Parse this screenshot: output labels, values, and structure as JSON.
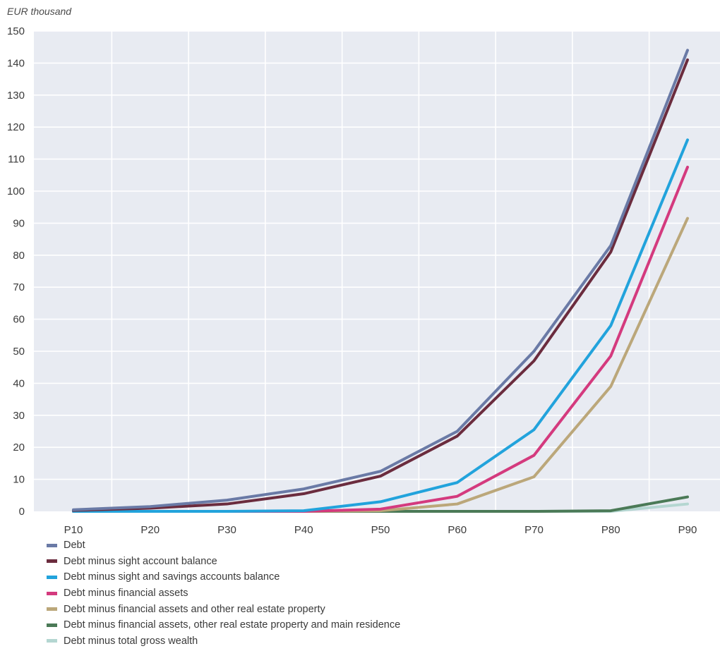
{
  "chart_data": {
    "type": "line",
    "unit_label": "EUR thousand",
    "xlabel": "",
    "ylabel": "",
    "categories": [
      "P10",
      "P20",
      "P30",
      "P40",
      "P50",
      "P60",
      "P70",
      "P80",
      "P90"
    ],
    "ylim": [
      0,
      150
    ],
    "yticks": [
      0,
      10,
      20,
      30,
      40,
      50,
      60,
      70,
      80,
      90,
      100,
      110,
      120,
      130,
      140,
      150
    ],
    "grid": true,
    "legend_position": "bottom",
    "background": "#e8ebf2",
    "series": [
      {
        "name": "Debt",
        "color": "#6a7aa6",
        "values": [
          0.5,
          1.5,
          3.5,
          7,
          12.5,
          25,
          50,
          83,
          144
        ]
      },
      {
        "name": "Debt minus sight account balance",
        "color": "#6b2c3e",
        "values": [
          0.3,
          1,
          2.3,
          5.5,
          11,
          23.5,
          47,
          81,
          141
        ]
      },
      {
        "name": "Debt minus sight and savings accounts balance",
        "color": "#22a3dc",
        "values": [
          0,
          0,
          0,
          0.2,
          3,
          9,
          25.5,
          58,
          116
        ]
      },
      {
        "name": "Debt minus financial assets",
        "color": "#d43a7e",
        "values": [
          0,
          0,
          0,
          0,
          0.7,
          4.7,
          17.5,
          48.5,
          107.5
        ]
      },
      {
        "name": "Debt minus financial assets and other real estate property",
        "color": "#bba77a",
        "values": [
          0,
          0,
          0,
          0,
          0.2,
          2.3,
          10.8,
          39,
          91.5
        ]
      },
      {
        "name": "Debt minus financial assets, other real estate property and main residence",
        "color": "#4b7a57",
        "values": [
          0,
          0,
          0,
          0,
          0,
          0,
          0,
          0.2,
          4.5
        ]
      },
      {
        "name": "Debt minus total gross wealth",
        "color": "#b4d6d1",
        "values": [
          0,
          0,
          0,
          0,
          0,
          0,
          0,
          0,
          2.3
        ]
      }
    ]
  }
}
